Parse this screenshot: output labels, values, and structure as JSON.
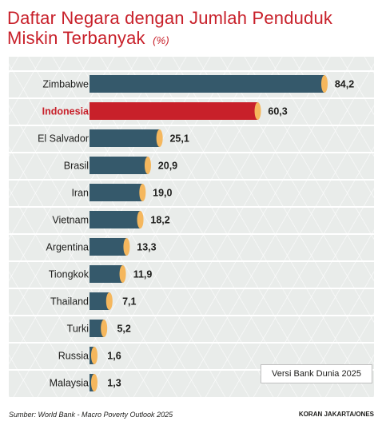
{
  "title": {
    "text": "Daftar Negara dengan Jumlah Penduduk Miskin Terbanyak",
    "unit": "(%)"
  },
  "colors": {
    "bar": "#35596b",
    "highlight_bar": "#c8202a",
    "cap": "#f5b75d",
    "title": "#c8202a"
  },
  "chart_data": {
    "type": "bar",
    "orientation": "horizontal",
    "title": "Daftar Negara dengan Jumlah Penduduk Miskin Terbanyak (%)",
    "categories": [
      "Zimbabwe",
      "Indonesia",
      "El Salvador",
      "Brasil",
      "Iran",
      "Vietnam",
      "Argentina",
      "Tiongkok",
      "Thailand",
      "Turki",
      "Russia",
      "Malaysia"
    ],
    "values": [
      84.2,
      60.3,
      25.1,
      20.9,
      19.0,
      18.2,
      13.3,
      11.9,
      7.1,
      5.2,
      1.6,
      1.3
    ],
    "value_labels": [
      "84,2",
      "60,3",
      "25,1",
      "20,9",
      "19,0",
      "18,2",
      "13,3",
      "11,9",
      "7,1",
      "5,2",
      "1,6",
      "1,3"
    ],
    "highlight": "Indonesia",
    "annotations": [
      "Versi Bank Dunia 2025"
    ]
  },
  "note": "Versi Bank Dunia 2025",
  "source": "Sumber: World Bank - Macro Poverty Outlook 2025",
  "credit": "KORAN JAKARTA/ONES"
}
